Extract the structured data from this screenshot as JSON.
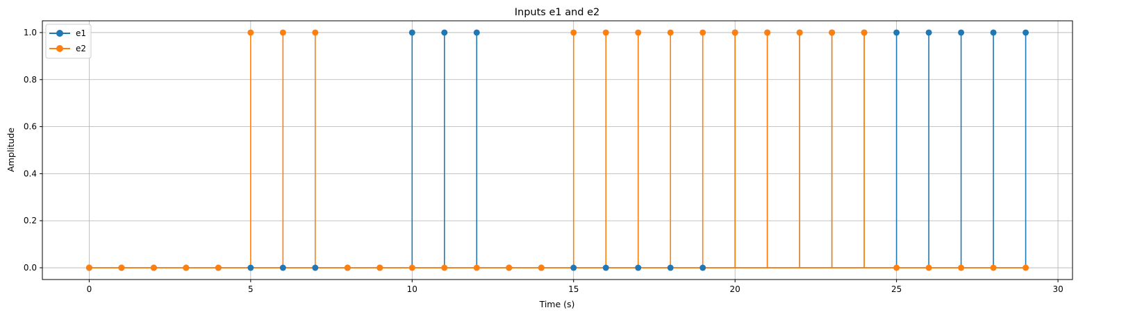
{
  "chart_data": {
    "type": "stem",
    "title": "Inputs e1 and e2",
    "xlabel": "Time (s)",
    "ylabel": "Amplitude",
    "xlim": [
      -1.45,
      30.45
    ],
    "ylim": [
      -0.05,
      1.05
    ],
    "xticks": [
      0,
      5,
      10,
      15,
      20,
      25,
      30
    ],
    "xtick_labels": [
      "0",
      "5",
      "10",
      "15",
      "20",
      "25",
      "30"
    ],
    "yticks": [
      0.0,
      0.2,
      0.4,
      0.6,
      0.8,
      1.0
    ],
    "ytick_labels": [
      "0.0",
      "0.2",
      "0.4",
      "0.6",
      "0.8",
      "1.0"
    ],
    "grid": true,
    "legend_position": "top-left",
    "x": [
      0,
      1,
      2,
      3,
      4,
      5,
      6,
      7,
      8,
      9,
      10,
      11,
      12,
      13,
      14,
      15,
      16,
      17,
      18,
      19,
      20,
      21,
      22,
      23,
      24,
      25,
      26,
      27,
      28,
      29
    ],
    "series": [
      {
        "name": "e1",
        "color": "#1f77b4",
        "values": [
          0,
          0,
          0,
          0,
          0,
          0,
          0,
          0,
          0,
          0,
          1,
          1,
          1,
          0,
          0,
          0,
          0,
          0,
          0,
          0,
          1,
          1,
          1,
          1,
          1,
          1,
          1,
          1,
          1,
          1
        ]
      },
      {
        "name": "e2",
        "color": "#ff7f0e",
        "values": [
          0,
          0,
          0,
          0,
          0,
          1,
          1,
          1,
          0,
          0,
          0,
          0,
          0,
          0,
          0,
          1,
          1,
          1,
          1,
          1,
          1,
          1,
          1,
          1,
          1,
          0,
          0,
          0,
          0,
          0
        ]
      }
    ]
  }
}
